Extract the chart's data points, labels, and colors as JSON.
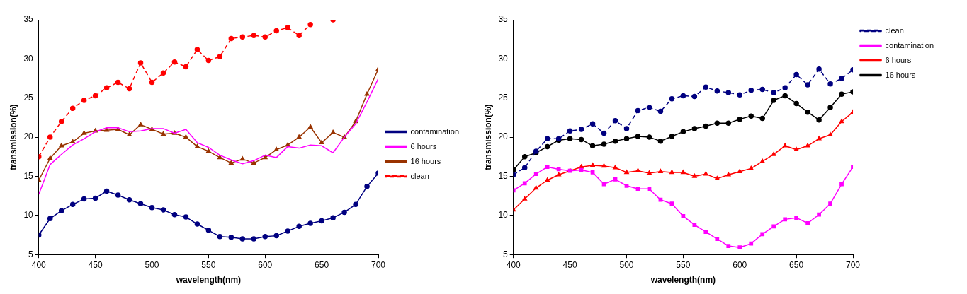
{
  "chart_data": [
    {
      "type": "line",
      "xlabel": "wavelength(nm)",
      "ylabel": "transmission(%)",
      "x": [
        400,
        410,
        420,
        430,
        440,
        450,
        460,
        470,
        480,
        490,
        500,
        510,
        520,
        530,
        540,
        550,
        560,
        570,
        580,
        590,
        600,
        610,
        620,
        630,
        640,
        650,
        660,
        670,
        680,
        690,
        700
      ],
      "xlim": [
        400,
        700
      ],
      "xticks": [
        400,
        450,
        500,
        550,
        600,
        650,
        700
      ],
      "ylim": [
        5,
        35
      ],
      "yticks": [
        5,
        10,
        15,
        20,
        25,
        30,
        35
      ],
      "grid": false,
      "legend": "right",
      "series": [
        {
          "name": "contamination",
          "color": "#000080",
          "marker": "circle",
          "line_style": "solid",
          "values": [
            7.5,
            9.6,
            10.6,
            11.4,
            12.1,
            12.2,
            13.1,
            12.6,
            12.0,
            11.5,
            11.0,
            10.7,
            10.1,
            9.8,
            8.9,
            8.1,
            7.3,
            7.2,
            7.0,
            7.0,
            7.3,
            7.4,
            8.0,
            8.6,
            9.0,
            9.3,
            9.7,
            10.4,
            11.4,
            13.7,
            15.4
          ]
        },
        {
          "name": "6 hours",
          "color": "#ff00ff",
          "marker": "none",
          "line_style": "solid",
          "values": [
            12.7,
            16.5,
            17.8,
            19.0,
            19.8,
            20.7,
            21.2,
            21.2,
            20.7,
            20.8,
            21.1,
            21.1,
            20.5,
            21.0,
            19.3,
            18.7,
            17.7,
            17.1,
            16.6,
            17.0,
            17.7,
            17.4,
            18.8,
            18.6,
            19.0,
            18.9,
            18.0,
            20.0,
            21.7,
            24.5,
            27.5
          ]
        },
        {
          "name": "16 hours",
          "color": "#993300",
          "marker": "triangle",
          "line_style": "solid",
          "values": [
            14.5,
            17.3,
            18.9,
            19.4,
            20.5,
            20.8,
            20.9,
            21.0,
            20.3,
            21.6,
            21.0,
            20.4,
            20.5,
            20.0,
            18.8,
            18.2,
            17.4,
            16.7,
            17.2,
            16.7,
            17.4,
            18.4,
            19.0,
            20.0,
            21.3,
            19.3,
            20.6,
            20.0,
            22.0,
            25.5,
            28.7
          ]
        },
        {
          "name": "clean",
          "color": "#ff0000",
          "marker": "circle",
          "line_style": "dashed",
          "values": [
            17.5,
            20.0,
            22.0,
            23.7,
            24.7,
            25.3,
            26.3,
            27.0,
            26.2,
            29.5,
            27.0,
            28.2,
            29.6,
            29.0,
            31.2,
            29.8,
            30.3,
            32.6,
            32.8,
            33.0,
            32.8,
            33.6,
            34.0,
            33.0,
            34.4,
            null,
            35.0,
            null,
            null,
            null,
            null
          ]
        }
      ]
    },
    {
      "type": "line",
      "xlabel": "wavelength(nm)",
      "ylabel": "transmission(%)",
      "x": [
        400,
        410,
        420,
        430,
        440,
        450,
        460,
        470,
        480,
        490,
        500,
        510,
        520,
        530,
        540,
        550,
        560,
        570,
        580,
        590,
        600,
        610,
        620,
        630,
        640,
        650,
        660,
        670,
        680,
        690,
        700
      ],
      "xlim": [
        400,
        700
      ],
      "xticks": [
        400,
        450,
        500,
        550,
        600,
        650,
        700
      ],
      "ylim": [
        5,
        35
      ],
      "yticks": [
        5,
        10,
        15,
        20,
        25,
        30,
        35
      ],
      "grid": false,
      "legend": "top right",
      "series": [
        {
          "name": "clean",
          "color": "#000080",
          "marker": "circle",
          "line_style": "dashed",
          "values": [
            15.2,
            16.1,
            18.2,
            19.8,
            19.8,
            20.8,
            21.0,
            21.7,
            20.5,
            22.1,
            21.1,
            23.4,
            23.8,
            23.3,
            24.9,
            25.3,
            25.2,
            26.4,
            25.9,
            25.7,
            25.4,
            26.0,
            26.1,
            25.7,
            26.3,
            28.0,
            26.7,
            28.7,
            26.8,
            27.5,
            28.6
          ]
        },
        {
          "name": "contamination",
          "color": "#ff00ff",
          "marker": "square",
          "line_style": "solid",
          "values": [
            13.2,
            14.1,
            15.3,
            16.2,
            15.9,
            15.7,
            15.8,
            15.5,
            14.0,
            14.6,
            13.8,
            13.4,
            13.4,
            12.0,
            11.5,
            9.9,
            8.8,
            7.9,
            7.0,
            6.1,
            5.9,
            6.4,
            7.6,
            8.6,
            9.5,
            9.7,
            9.0,
            10.1,
            11.5,
            14.0,
            16.2
          ]
        },
        {
          "name": "6 hours",
          "color": "#ff0000",
          "marker": "triangle",
          "line_style": "solid",
          "values": [
            10.7,
            12.1,
            13.5,
            14.5,
            15.2,
            15.7,
            16.2,
            16.4,
            16.3,
            16.1,
            15.5,
            15.7,
            15.4,
            15.6,
            15.5,
            15.5,
            15.0,
            15.3,
            14.7,
            15.2,
            15.6,
            16.0,
            16.9,
            17.8,
            18.9,
            18.4,
            18.9,
            19.8,
            20.3,
            22.0,
            23.2
          ]
        },
        {
          "name": "16 hours",
          "color": "#000000",
          "marker": "circle",
          "line_style": "solid",
          "values": [
            15.8,
            17.5,
            18.0,
            18.8,
            19.6,
            19.8,
            19.7,
            18.9,
            19.1,
            19.5,
            19.8,
            20.1,
            20.0,
            19.5,
            20.1,
            20.7,
            21.1,
            21.4,
            21.8,
            21.8,
            22.3,
            22.7,
            22.4,
            24.7,
            25.3,
            24.3,
            23.2,
            22.2,
            23.8,
            25.5,
            25.8
          ]
        }
      ]
    }
  ]
}
